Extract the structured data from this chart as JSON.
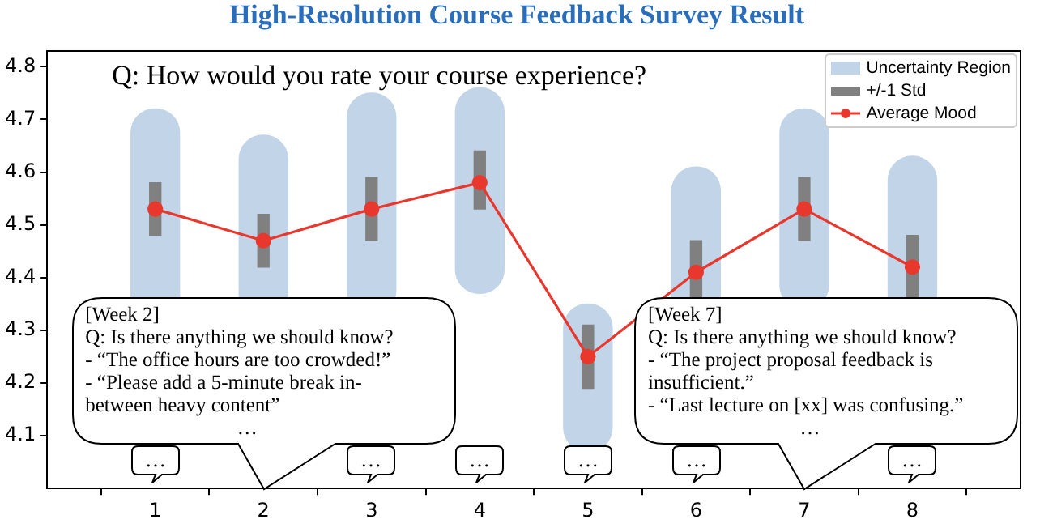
{
  "chart_data": {
    "type": "bar",
    "title": "High-Resolution Course Feedback Survey Result",
    "x": [
      1,
      2,
      3,
      4,
      5,
      6,
      7,
      8
    ],
    "xlim": [
      0,
      9
    ],
    "xticks": [
      1,
      2,
      3,
      4,
      5,
      6,
      7,
      8
    ],
    "ylim": [
      4.0,
      4.83
    ],
    "yticks": [
      4.1,
      4.2,
      4.3,
      4.4,
      4.5,
      4.6,
      4.7,
      4.8
    ],
    "grid": false,
    "legend": "top right",
    "series": [
      {
        "name": "Uncertainty Region",
        "color": "#c1d4e8",
        "base": [
          4.32,
          4.3,
          4.33,
          4.37,
          4.07,
          4.2,
          4.34,
          4.22
        ],
        "values": [
          0.4,
          0.37,
          0.42,
          0.39,
          0.28,
          0.41,
          0.38,
          0.41
        ]
      },
      {
        "name": "+/-1 Std",
        "color": "#808080",
        "base": [
          4.48,
          4.42,
          4.47,
          4.53,
          4.19,
          4.36,
          4.47,
          4.36
        ],
        "values": [
          0.1,
          0.1,
          0.12,
          0.11,
          0.12,
          0.11,
          0.12,
          0.12
        ]
      },
      {
        "name": "Average Mood",
        "type": "line",
        "color": "#e8382e",
        "marker": "circle",
        "values": [
          4.53,
          4.47,
          4.53,
          4.58,
          4.25,
          4.41,
          4.53,
          4.42
        ]
      }
    ],
    "annotations": [
      "Q: How would you rate your course experience?",
      "[Week 2]\nQ: Is there anything we should know?\n- “The office hours are too crowded!”\n- “Please add a 5-minute break in-\nbetween heavy content”\n…",
      "[Week 7]\nQ: Is there anything we should know?\n- “The project proposal feedback is\ninsufficient.”\n- “Last lecture on [xx] was confusing.”\n…",
      "…",
      "…",
      "…",
      "…",
      "…",
      "…"
    ]
  }
}
